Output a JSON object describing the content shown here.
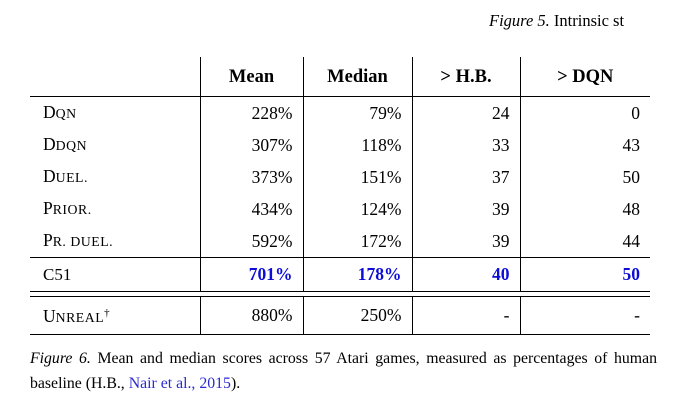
{
  "top_fragment": {
    "label": "Figure 5.",
    "text": "Intrinsic st"
  },
  "table": {
    "headers": [
      "",
      "Mean",
      "Median",
      "> H.B.",
      "> DQN"
    ],
    "rows": [
      {
        "label": "DQN",
        "mean": "228%",
        "median": "79%",
        "gt_hb": "24",
        "gt_dqn": "0"
      },
      {
        "label": "DDQN",
        "mean": "307%",
        "median": "118%",
        "gt_hb": "33",
        "gt_dqn": "43"
      },
      {
        "label": "DUEL.",
        "mean": "373%",
        "median": "151%",
        "gt_hb": "37",
        "gt_dqn": "50"
      },
      {
        "label": "PRIOR.",
        "mean": "434%",
        "median": "124%",
        "gt_hb": "39",
        "gt_dqn": "48"
      },
      {
        "label": "PR. DUEL.",
        "mean": "592%",
        "median": "172%",
        "gt_hb": "39",
        "gt_dqn": "44"
      },
      {
        "label": "C51",
        "mean": "701%",
        "median": "178%",
        "gt_hb": "40",
        "gt_dqn": "50",
        "highlight": true
      },
      {
        "label": "UNREAL",
        "sup": "†",
        "mean": "880%",
        "median": "250%",
        "gt_hb": "-",
        "gt_dqn": "-"
      }
    ]
  },
  "caption": {
    "label": "Figure 6.",
    "text_before_link": "Mean and median scores across 57 Atari games, measured as percentages of human baseline (H.B., ",
    "link": "Nair et al., 2015",
    "text_after_link": ")."
  },
  "colors": {
    "c51_highlight": "#0d0dd6",
    "citation_link": "#2a2ad0"
  }
}
